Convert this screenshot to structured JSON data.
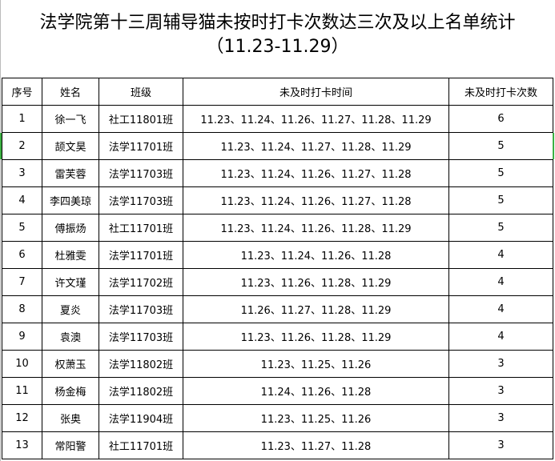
{
  "title": {
    "line1": "法学院第十三周辅导猫未按时打卡次数达三次及以上名单统计",
    "line2": "（11.23-11.29）"
  },
  "headers": [
    "序号",
    "姓名",
    "班级",
    "未及时打卡时间",
    "未及时打卡次数"
  ],
  "rows": [
    [
      "1",
      "徐一飞",
      "社工11801班",
      "11.23、11.24、11.26、11.27、11.28、11.29",
      "6"
    ],
    [
      "2",
      "颉文昊",
      "法学11701班",
      "11.23、11.24、11.27、11.28、11.29",
      "5"
    ],
    [
      "3",
      "雷芙蓉",
      "法学11703班",
      "11.23、11.24、11.26、11.27、11.28",
      "5"
    ],
    [
      "4",
      "李四美琼",
      "法学11703班",
      "11.23、11.24、11.26、11.27、11.28",
      "5"
    ],
    [
      "5",
      "傅振炀",
      "社工11701班",
      "11.23、11.24、11.26、11.28、11.29",
      "5"
    ],
    [
      "6",
      "杜雅雯",
      "法学11701班",
      "11.23、11.24、11.26、11.28",
      "4"
    ],
    [
      "7",
      "许文瑾",
      "法学11702班",
      "11.23、11.26、11.28、11.29",
      "4"
    ],
    [
      "8",
      "夏炎",
      "法学11703班",
      "11.26、11.27、11.28、11.29",
      "4"
    ],
    [
      "9",
      "袁澳",
      "法学11703班",
      "11.23、11.26、11.28、11.29",
      "4"
    ],
    [
      "10",
      "权萧玉",
      "法学11802班",
      "11.23、11.25、11.26",
      "3"
    ],
    [
      "11",
      "杨金梅",
      "法学11802班",
      "11.24、11.26、11.28",
      "3"
    ],
    [
      "12",
      "张奥",
      "法学11904班",
      "11.23、11.25、11.26",
      "3"
    ],
    [
      "13",
      "常阳警",
      "社工11701班",
      "11.23、11.27、11.28",
      "3"
    ]
  ],
  "colors": {
    "selection": "#3cb043"
  }
}
